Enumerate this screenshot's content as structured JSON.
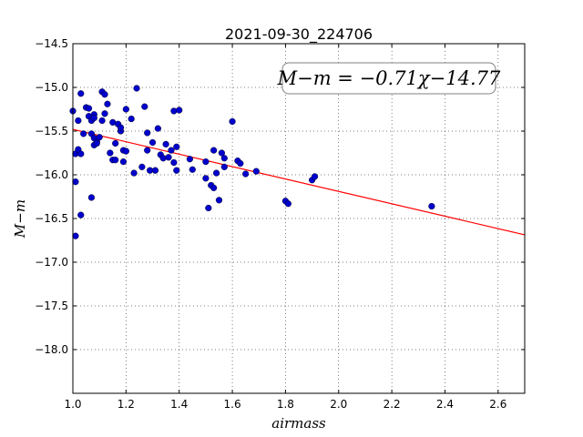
{
  "chart_data": {
    "type": "scatter",
    "title": "2021-09-30_224706",
    "xlabel": "airmass",
    "ylabel": "M−m",
    "xlim": [
      1.0,
      2.7
    ],
    "ylim": [
      -18.5,
      -14.5
    ],
    "y_inverted": true,
    "grid": true,
    "xticks": [
      1.0,
      1.2,
      1.4,
      1.6,
      1.8,
      2.0,
      2.2,
      2.4,
      2.6
    ],
    "xtick_labels": [
      "1.0",
      "1.2",
      "1.4",
      "1.6",
      "1.8",
      "2.0",
      "2.2",
      "2.4",
      "2.6"
    ],
    "yticks": [
      -14.5,
      -15.0,
      -15.5,
      -16.0,
      -16.5,
      -17.0,
      -17.5,
      -18.0
    ],
    "ytick_labels": [
      "−14.5",
      "−15.0",
      "−15.5",
      "−16.0",
      "−16.5",
      "−17.0",
      "−17.5",
      "−18.0"
    ],
    "annotation": "M−m = −0.71χ−14.77",
    "fit": {
      "slope": -0.71,
      "intercept": -14.77,
      "color": "#ff0000"
    },
    "point_color": "#0000cc",
    "points": [
      [
        1.0,
        -15.27
      ],
      [
        1.01,
        -16.08
      ],
      [
        1.01,
        -16.7
      ],
      [
        1.01,
        -15.76
      ],
      [
        1.02,
        -15.38
      ],
      [
        1.02,
        -15.71
      ],
      [
        1.03,
        -15.07
      ],
      [
        1.03,
        -15.76
      ],
      [
        1.03,
        -16.46
      ],
      [
        1.04,
        -15.53
      ],
      [
        1.05,
        -15.23
      ],
      [
        1.06,
        -15.24
      ],
      [
        1.06,
        -15.33
      ],
      [
        1.07,
        -15.38
      ],
      [
        1.07,
        -15.53
      ],
      [
        1.07,
        -16.26
      ],
      [
        1.08,
        -15.31
      ],
      [
        1.08,
        -15.35
      ],
      [
        1.08,
        -15.58
      ],
      [
        1.08,
        -15.66
      ],
      [
        1.09,
        -15.62
      ],
      [
        1.09,
        -15.64
      ],
      [
        1.1,
        -15.57
      ],
      [
        1.11,
        -15.38
      ],
      [
        1.11,
        -15.05
      ],
      [
        1.12,
        -15.08
      ],
      [
        1.12,
        -15.3
      ],
      [
        1.13,
        -15.19
      ],
      [
        1.14,
        -15.75
      ],
      [
        1.15,
        -15.83
      ],
      [
        1.15,
        -15.4
      ],
      [
        1.16,
        -15.64
      ],
      [
        1.16,
        -15.83
      ],
      [
        1.17,
        -15.42
      ],
      [
        1.18,
        -15.5
      ],
      [
        1.18,
        -15.46
      ],
      [
        1.19,
        -15.72
      ],
      [
        1.19,
        -15.85
      ],
      [
        1.2,
        -15.73
      ],
      [
        1.2,
        -15.25
      ],
      [
        1.22,
        -15.36
      ],
      [
        1.23,
        -15.98
      ],
      [
        1.24,
        -15.01
      ],
      [
        1.26,
        -15.91
      ],
      [
        1.27,
        -15.22
      ],
      [
        1.28,
        -15.52
      ],
      [
        1.28,
        -15.72
      ],
      [
        1.29,
        -15.95
      ],
      [
        1.3,
        -15.63
      ],
      [
        1.31,
        -15.95
      ],
      [
        1.32,
        -15.47
      ],
      [
        1.33,
        -15.77
      ],
      [
        1.34,
        -15.81
      ],
      [
        1.35,
        -15.65
      ],
      [
        1.36,
        -15.8
      ],
      [
        1.37,
        -15.72
      ],
      [
        1.38,
        -15.27
      ],
      [
        1.38,
        -15.86
      ],
      [
        1.39,
        -15.68
      ],
      [
        1.39,
        -15.95
      ],
      [
        1.4,
        -15.26
      ],
      [
        1.44,
        -15.82
      ],
      [
        1.45,
        -15.94
      ],
      [
        1.5,
        -15.85
      ],
      [
        1.5,
        -16.04
      ],
      [
        1.51,
        -16.38
      ],
      [
        1.52,
        -16.12
      ],
      [
        1.53,
        -15.72
      ],
      [
        1.53,
        -16.15
      ],
      [
        1.54,
        -15.98
      ],
      [
        1.55,
        -16.29
      ],
      [
        1.56,
        -15.75
      ],
      [
        1.57,
        -15.91
      ],
      [
        1.57,
        -15.81
      ],
      [
        1.6,
        -15.39
      ],
      [
        1.62,
        -15.84
      ],
      [
        1.63,
        -15.87
      ],
      [
        1.65,
        -15.99
      ],
      [
        1.69,
        -15.96
      ],
      [
        1.8,
        -16.3
      ],
      [
        1.81,
        -16.33
      ],
      [
        1.9,
        -16.06
      ],
      [
        1.91,
        -16.02
      ],
      [
        2.35,
        -16.36
      ]
    ]
  }
}
